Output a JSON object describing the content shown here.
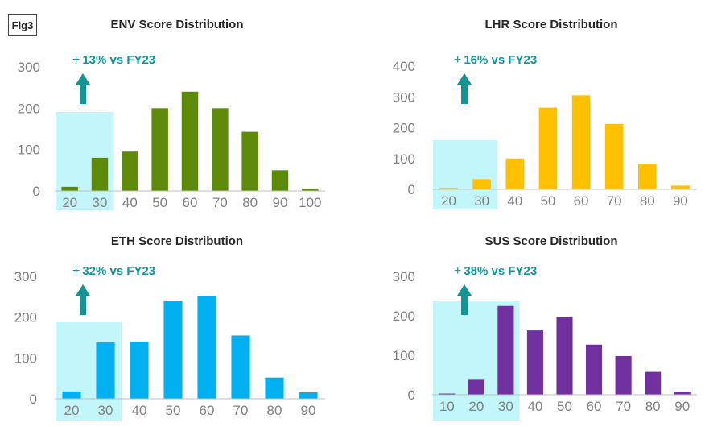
{
  "figure_label": "Fig3",
  "colors": {
    "highlight": "#c2f6fb",
    "arrow": "#149595",
    "annotation_text": "#0a9a9a",
    "axis": "#bfbfbf",
    "tick_text": "#808080"
  },
  "chart_data": [
    {
      "type": "bar",
      "title": "ENV Score Distribution",
      "categories": [
        "20",
        "30",
        "40",
        "50",
        "60",
        "70",
        "80",
        "90",
        "100"
      ],
      "values": [
        10,
        80,
        95,
        200,
        240,
        200,
        143,
        50,
        6
      ],
      "ylim": [
        0,
        300
      ],
      "yticks": [
        0,
        100,
        200,
        300
      ],
      "color": "#5e8a0a",
      "highlight_categories": [
        "20",
        "30"
      ],
      "annotation": {
        "plus": "+",
        "text": "13% vs FY23"
      }
    },
    {
      "type": "bar",
      "title": "LHR Score Distribution",
      "categories": [
        "20",
        "30",
        "40",
        "50",
        "60",
        "70",
        "80",
        "90"
      ],
      "values": [
        5,
        33,
        100,
        265,
        305,
        212,
        82,
        12
      ],
      "ylim": [
        0,
        400
      ],
      "yticks": [
        0,
        100,
        200,
        300,
        400
      ],
      "color": "#ffc000",
      "highlight_categories": [
        "20",
        "30"
      ],
      "annotation": {
        "plus": "+",
        "text": "16% vs FY23"
      }
    },
    {
      "type": "bar",
      "title": "ETH Score Distribution",
      "categories": [
        "20",
        "30",
        "40",
        "50",
        "60",
        "70",
        "80",
        "90"
      ],
      "values": [
        18,
        138,
        140,
        240,
        252,
        155,
        52,
        16
      ],
      "ylim": [
        0,
        300
      ],
      "yticks": [
        0,
        100,
        200,
        300
      ],
      "color": "#00b0f0",
      "highlight_categories": [
        "20",
        "30"
      ],
      "annotation": {
        "plus": "+",
        "text": "32% vs FY23"
      }
    },
    {
      "type": "bar",
      "title": "SUS Score Distribution",
      "categories": [
        "10",
        "20",
        "30",
        "40",
        "50",
        "60",
        "70",
        "80",
        "90"
      ],
      "values": [
        3,
        38,
        225,
        163,
        197,
        127,
        98,
        58,
        8
      ],
      "ylim": [
        0,
        300
      ],
      "yticks": [
        0,
        100,
        200,
        300
      ],
      "color": "#7030a0",
      "highlight_categories": [
        "10",
        "20",
        "30"
      ],
      "annotation": {
        "plus": "+",
        "text": "38% vs FY23"
      }
    }
  ]
}
